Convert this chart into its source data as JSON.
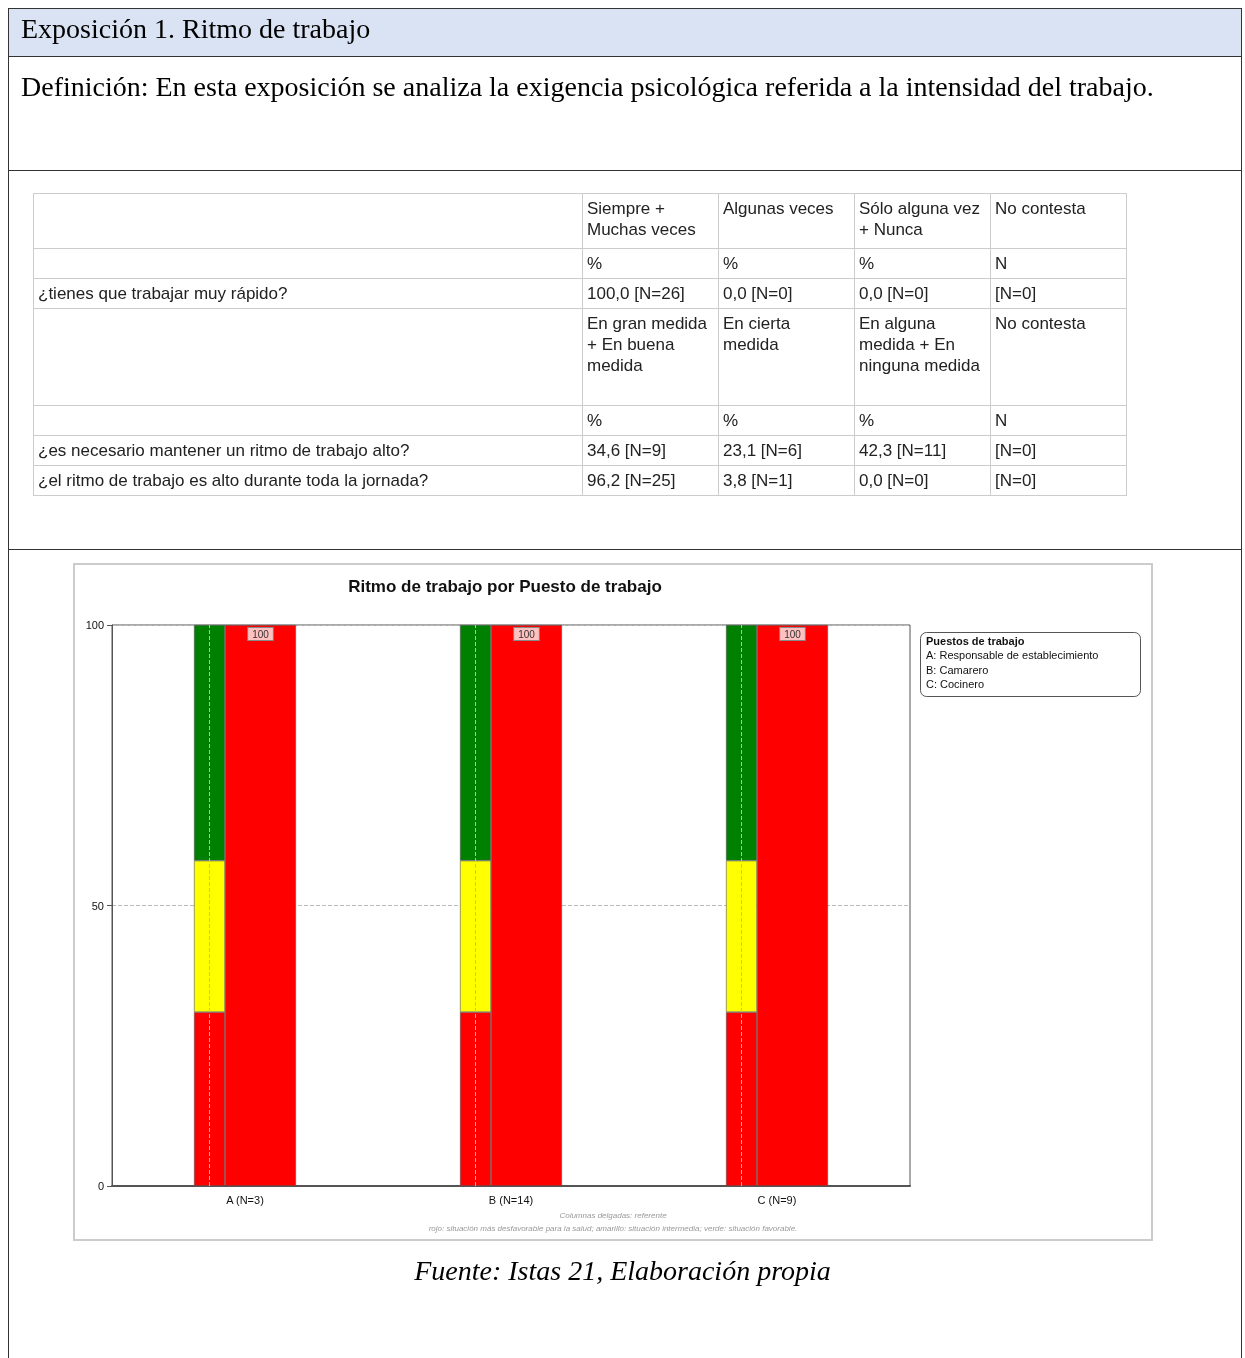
{
  "chart_data": [
    {
      "type": "other",
      "title": "Exposición 1. Ritmo de trabajo",
      "subtitle": "Definición: En esta exposición se analiza la exigencia psicológica referida a la intensidad del trabajo.",
      "annotations": [
        "Siempre + Muchas veces",
        "Algunas veces",
        "Sólo alguna vez + Nunca",
        "No contesta",
        "%",
        "%",
        "%",
        "N",
        "¿tienes que trabajar muy rápido?",
        "100,0 [N=26]",
        "0,0 [N=0]",
        "0,0 [N=0]",
        "[N=0]",
        "En gran medida + En buena medida",
        "En cierta medida",
        "En alguna medida + En ninguna medida",
        "No contesta",
        "%",
        "%",
        "%",
        "N",
        "¿es necesario mantener un ritmo de trabajo alto?",
        "34,6 [N=9]",
        "23,1 [N=6]",
        "42,3 [N=11]",
        "[N=0]",
        "¿el ritmo de trabajo es alto durante toda la jornada?",
        "96,2 [N=25]",
        "3,8 [N=1]",
        "0,0 [N=0]",
        "[N=0]"
      ]
    },
    {
      "type": "bar",
      "title": "Ritmo de trabajo por Puesto de trabajo",
      "categories": [
        "A (N=3)",
        "B (N=14)",
        "C (N=9)"
      ],
      "series": [
        {
          "color": "#ff0000",
          "values": [
            31,
            31,
            31
          ],
          "base": [
            0,
            0,
            0
          ]
        },
        {
          "color": "#ffff00",
          "values": [
            27,
            27,
            27
          ],
          "base": [
            31,
            31,
            31
          ]
        },
        {
          "color": "#008000",
          "values": [
            42,
            42,
            42
          ],
          "base": [
            58,
            58,
            58
          ]
        },
        {
          "color": "#ff0000",
          "values": [
            100,
            100,
            100
          ],
          "base": [
            0,
            0,
            0
          ],
          "value_labels": [
            "100",
            "100",
            "100"
          ]
        }
      ],
      "ylim": [
        0,
        100
      ],
      "yticks": [
        0,
        50,
        100
      ],
      "grid": true,
      "annotations": [
        "Puestos de trabajo",
        "A: Responsable de establecimiento",
        "B: Camarero",
        "C: Cocinero",
        "Columnas delgadas: referente",
        "rojo: situación más desfavorable para la salud; amarillo: situación intermedia; verde: situación favorable.",
        "Fuente: Istas 21, Elaboración propia"
      ]
    }
  ]
}
